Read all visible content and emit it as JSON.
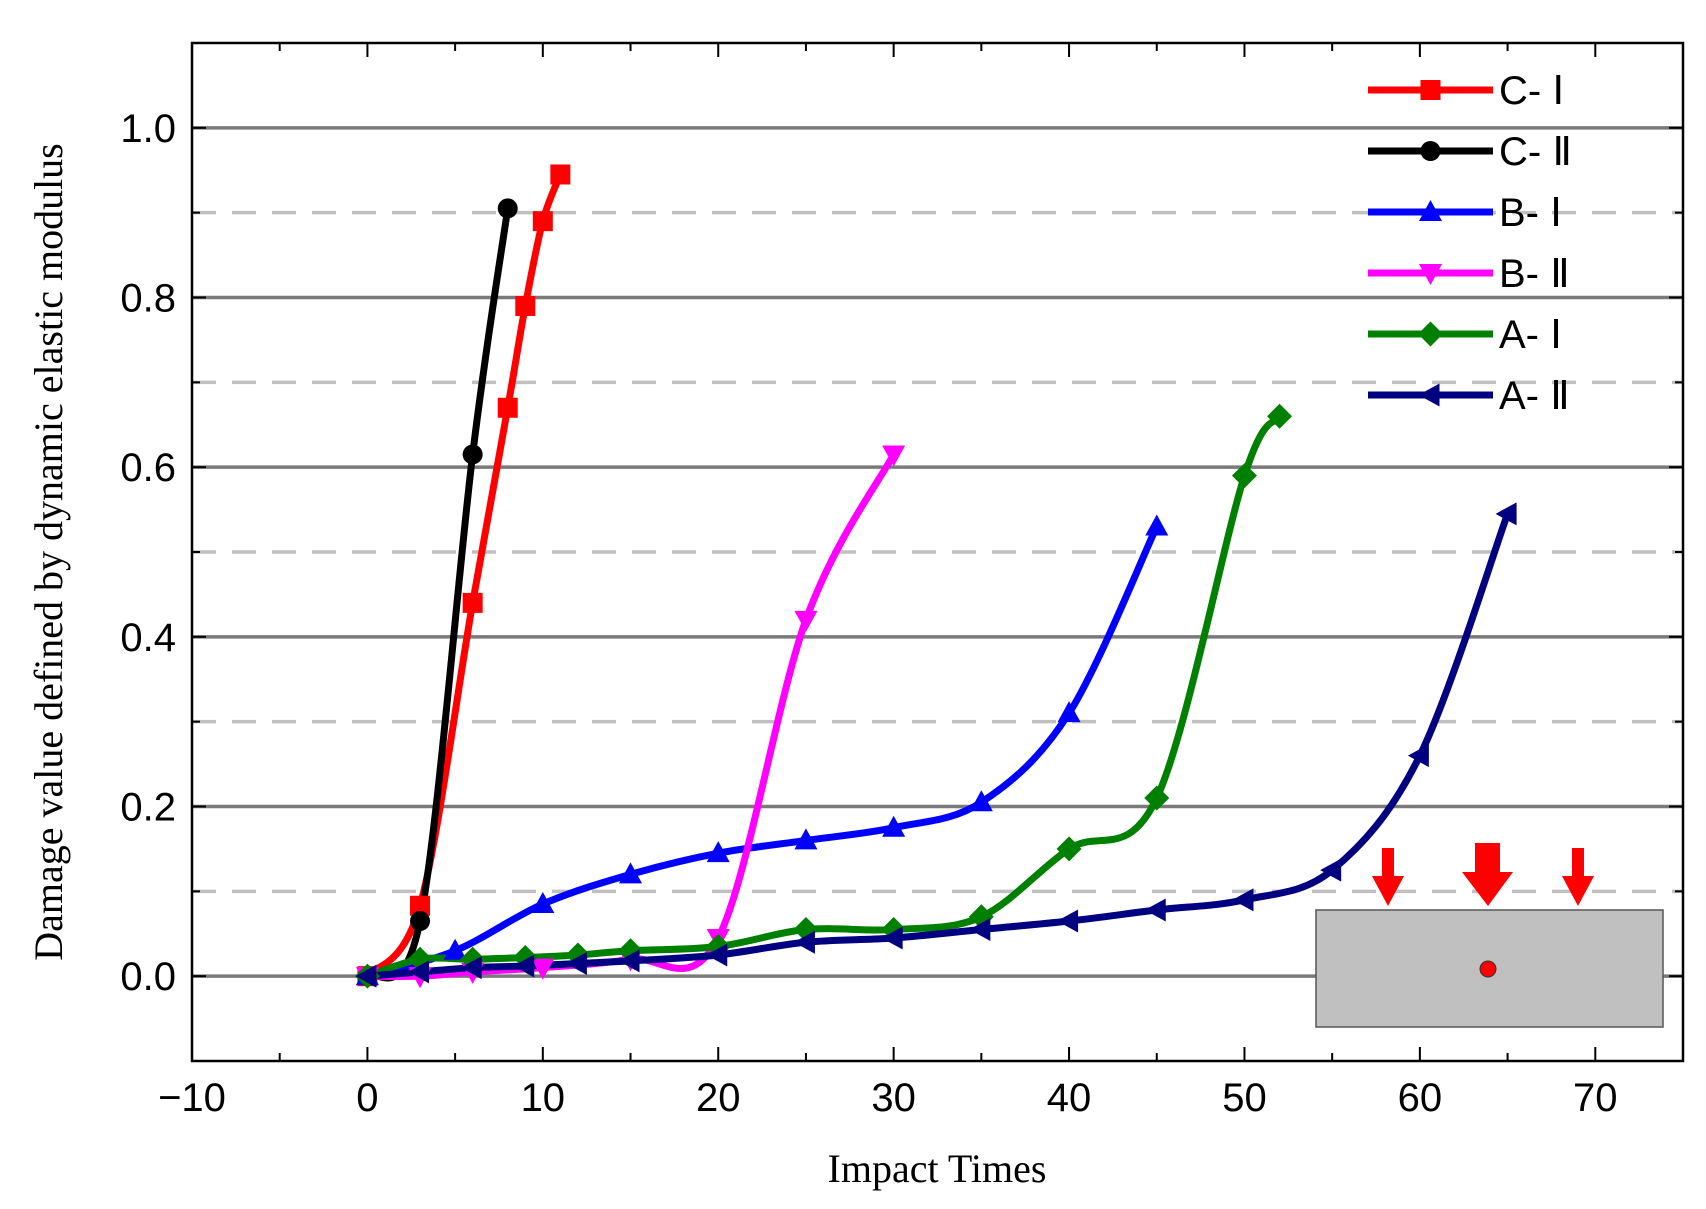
{
  "chart_data": {
    "type": "line",
    "title": "",
    "xlabel": "Impact Times",
    "ylabel": "Damage value defined by dynamic elastic modulus",
    "xlim": [
      -10,
      75
    ],
    "ylim": [
      -0.1,
      1.1
    ],
    "x_ticks": [
      -10,
      0,
      10,
      20,
      30,
      40,
      50,
      60,
      70
    ],
    "x_tick_labels": [
      "−10",
      "0",
      "10",
      "20",
      "30",
      "40",
      "50",
      "60",
      "70"
    ],
    "y_ticks": [
      0.0,
      0.2,
      0.4,
      0.6,
      0.8,
      1.0
    ],
    "y_tick_labels": [
      "0.0",
      "0.2",
      "0.4",
      "0.6",
      "0.8",
      "1.0"
    ],
    "grid": {
      "major_y": [
        0.0,
        0.2,
        0.4,
        0.6,
        0.8,
        1.0
      ],
      "minor_y_dashed": [
        0.1,
        0.3,
        0.5,
        0.7,
        0.9
      ]
    },
    "legend_position": "top-right",
    "series": [
      {
        "name": "C- Ⅰ",
        "color": "#ff0000",
        "marker": "square",
        "x": [
          0,
          3,
          6,
          8,
          9,
          10,
          11
        ],
        "y": [
          0.0,
          0.083,
          0.44,
          0.67,
          0.79,
          0.89,
          0.945
        ]
      },
      {
        "name": "C- Ⅱ",
        "color": "#000000",
        "marker": "circle",
        "x": [
          0,
          3,
          6,
          8
        ],
        "y": [
          0.0,
          0.065,
          0.615,
          0.905
        ]
      },
      {
        "name": "B- Ⅰ",
        "color": "#0000ff",
        "marker": "triangle-up",
        "x": [
          0,
          5,
          10,
          15,
          20,
          25,
          30,
          35,
          40,
          45
        ],
        "y": [
          0.0,
          0.03,
          0.085,
          0.12,
          0.145,
          0.16,
          0.175,
          0.205,
          0.31,
          0.53
        ]
      },
      {
        "name": "B- Ⅱ",
        "color": "#ff00ff",
        "marker": "triangle-down",
        "x": [
          0,
          3,
          6,
          10,
          15,
          20,
          25,
          30
        ],
        "y": [
          0.0,
          0.0,
          0.005,
          0.01,
          0.02,
          0.045,
          0.42,
          0.615
        ]
      },
      {
        "name": "A- Ⅰ",
        "color": "#008000",
        "marker": "diamond",
        "x": [
          0,
          3,
          6,
          9,
          12,
          15,
          20,
          25,
          30,
          35,
          40,
          45,
          50,
          52
        ],
        "y": [
          0.0,
          0.02,
          0.02,
          0.022,
          0.025,
          0.03,
          0.035,
          0.055,
          0.055,
          0.07,
          0.15,
          0.21,
          0.59,
          0.66
        ]
      },
      {
        "name": "A- Ⅱ",
        "color": "#000080",
        "marker": "triangle-left",
        "x": [
          0,
          3,
          6,
          9,
          12,
          15,
          20,
          25,
          30,
          35,
          40,
          45,
          50,
          55,
          60,
          65
        ],
        "y": [
          0.0,
          0.005,
          0.01,
          0.012,
          0.015,
          0.018,
          0.025,
          0.04,
          0.045,
          0.055,
          0.065,
          0.078,
          0.09,
          0.125,
          0.26,
          0.545
        ]
      }
    ],
    "inset": {
      "description": "loaded specimen schematic with three downward red arrows (middle one larger) and a red point",
      "block_color": "#c0c0c0",
      "arrow_color": "#ff0000"
    }
  }
}
